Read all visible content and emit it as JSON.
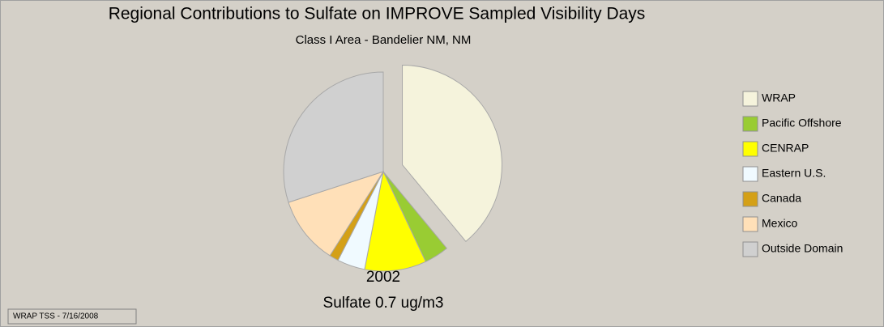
{
  "chart_data": {
    "type": "pie",
    "title": "Regional Contributions to Sulfate on IMPROVE Sampled Visibility Days",
    "subtitle": "Class I Area - Bandelier  NM, NM",
    "annotations": [
      "2002",
      "Sulfate 0.7 ug/m3"
    ],
    "footer": "WRAP TSS - 7/16/2008",
    "categories": [
      "WRAP",
      "Pacific Offshore",
      "CENRAP",
      "Eastern U.S.",
      "Canada",
      "Mexico",
      "Outside Domain"
    ],
    "values": [
      39,
      4,
      10,
      4.5,
      1.5,
      11,
      30
    ],
    "colors": [
      "#f5f3dc",
      "#99cc33",
      "#ffff00",
      "#f0faff",
      "#d4a017",
      "#ffe0b8",
      "#d0d0d0"
    ],
    "legend": "right"
  }
}
